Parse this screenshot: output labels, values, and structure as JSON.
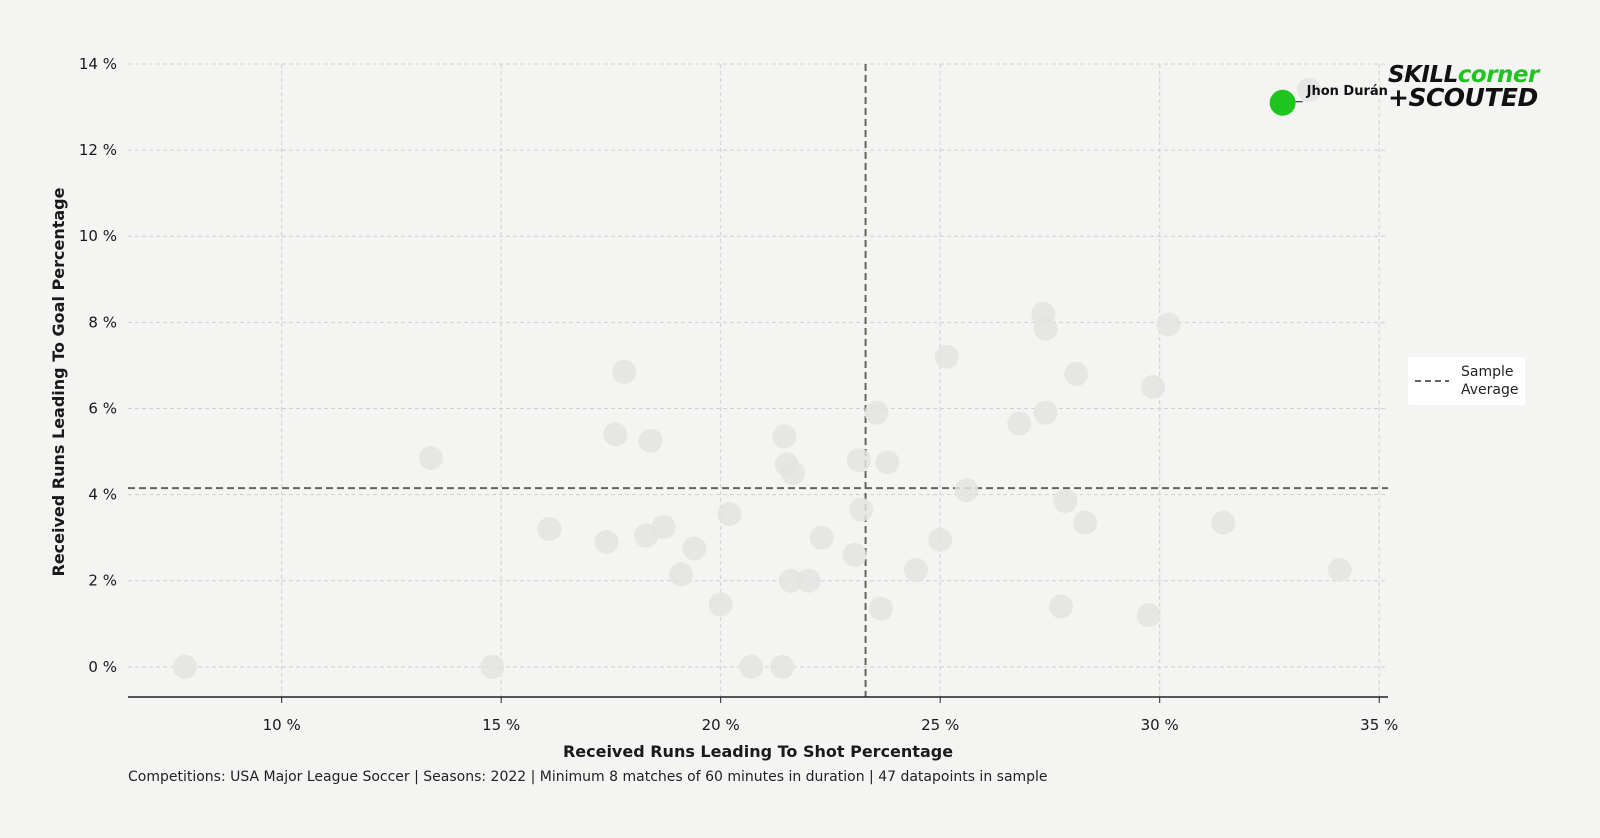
{
  "chart_data": {
    "type": "scatter",
    "xlabel": "Received Runs Leading To Shot Percentage",
    "ylabel": "Received Runs Leading To Goal Percentage",
    "xlim": [
      6.5,
      35.2
    ],
    "ylim": [
      -0.7,
      14
    ],
    "x_ticks": [
      10,
      15,
      20,
      25,
      30,
      35
    ],
    "y_ticks": [
      0,
      2,
      4,
      6,
      8,
      10,
      12,
      14
    ],
    "x_tick_labels": [
      "10 %",
      "15 %",
      "20 %",
      "25 %",
      "30 %",
      "35 %"
    ],
    "y_tick_labels": [
      "0 %",
      "2 %",
      "4 %",
      "6 %",
      "8 %",
      "10 %",
      "12 %",
      "14 %"
    ],
    "grid": true,
    "sample_average": {
      "x": 23.3,
      "y": 4.15,
      "label": "Sample\nAverage"
    },
    "highlight": {
      "name": "Jhon Durán",
      "x": 32.8,
      "y": 13.1,
      "color": "#1fc41f"
    },
    "points": [
      {
        "x": 7.8,
        "y": 0.0
      },
      {
        "x": 13.4,
        "y": 4.85
      },
      {
        "x": 14.8,
        "y": 0.0
      },
      {
        "x": 16.1,
        "y": 3.2
      },
      {
        "x": 17.4,
        "y": 2.9
      },
      {
        "x": 17.6,
        "y": 5.4
      },
      {
        "x": 17.8,
        "y": 6.85
      },
      {
        "x": 18.3,
        "y": 3.05
      },
      {
        "x": 18.4,
        "y": 5.25
      },
      {
        "x": 18.7,
        "y": 3.25
      },
      {
        "x": 19.1,
        "y": 2.15
      },
      {
        "x": 19.4,
        "y": 2.75
      },
      {
        "x": 20.0,
        "y": 1.45
      },
      {
        "x": 20.2,
        "y": 3.55
      },
      {
        "x": 20.7,
        "y": 0.0
      },
      {
        "x": 21.4,
        "y": 0.0
      },
      {
        "x": 21.45,
        "y": 5.35
      },
      {
        "x": 21.5,
        "y": 4.7
      },
      {
        "x": 21.6,
        "y": 2.0
      },
      {
        "x": 21.65,
        "y": 4.5
      },
      {
        "x": 22.0,
        "y": 2.0
      },
      {
        "x": 22.3,
        "y": 3.0
      },
      {
        "x": 23.05,
        "y": 2.6
      },
      {
        "x": 23.15,
        "y": 4.8
      },
      {
        "x": 23.2,
        "y": 3.65
      },
      {
        "x": 23.55,
        "y": 5.9
      },
      {
        "x": 23.65,
        "y": 1.35
      },
      {
        "x": 23.8,
        "y": 4.75
      },
      {
        "x": 24.45,
        "y": 2.25
      },
      {
        "x": 25.0,
        "y": 2.95
      },
      {
        "x": 25.15,
        "y": 7.2
      },
      {
        "x": 25.6,
        "y": 4.1
      },
      {
        "x": 26.8,
        "y": 5.65
      },
      {
        "x": 27.35,
        "y": 8.2
      },
      {
        "x": 27.4,
        "y": 7.85
      },
      {
        "x": 27.4,
        "y": 5.9
      },
      {
        "x": 27.75,
        "y": 1.4
      },
      {
        "x": 27.85,
        "y": 3.85
      },
      {
        "x": 28.1,
        "y": 6.8
      },
      {
        "x": 28.3,
        "y": 3.35
      },
      {
        "x": 29.75,
        "y": 1.2
      },
      {
        "x": 29.85,
        "y": 6.5
      },
      {
        "x": 30.2,
        "y": 7.95
      },
      {
        "x": 31.45,
        "y": 3.35
      },
      {
        "x": 34.1,
        "y": 2.25
      },
      {
        "x": 33.4,
        "y": 13.4
      }
    ],
    "colors": {
      "points": "#e3e3e2",
      "average_line": "#5f6660",
      "grid": "#cfcfcf",
      "background": "#f4f4f3"
    }
  },
  "footnote": "Competitions: USA Major League Soccer | Seasons: 2022 | Minimum 8 matches of 60 minutes in duration | 47 datapoints in sample",
  "legend": {
    "line1": "Sample",
    "line2": "Average"
  },
  "logo": {
    "line1a": "SKILL",
    "line1b": "corner",
    "line2": "+SCOUTED",
    "colors": {
      "dark": "#111111",
      "green": "#1fc41f"
    }
  }
}
